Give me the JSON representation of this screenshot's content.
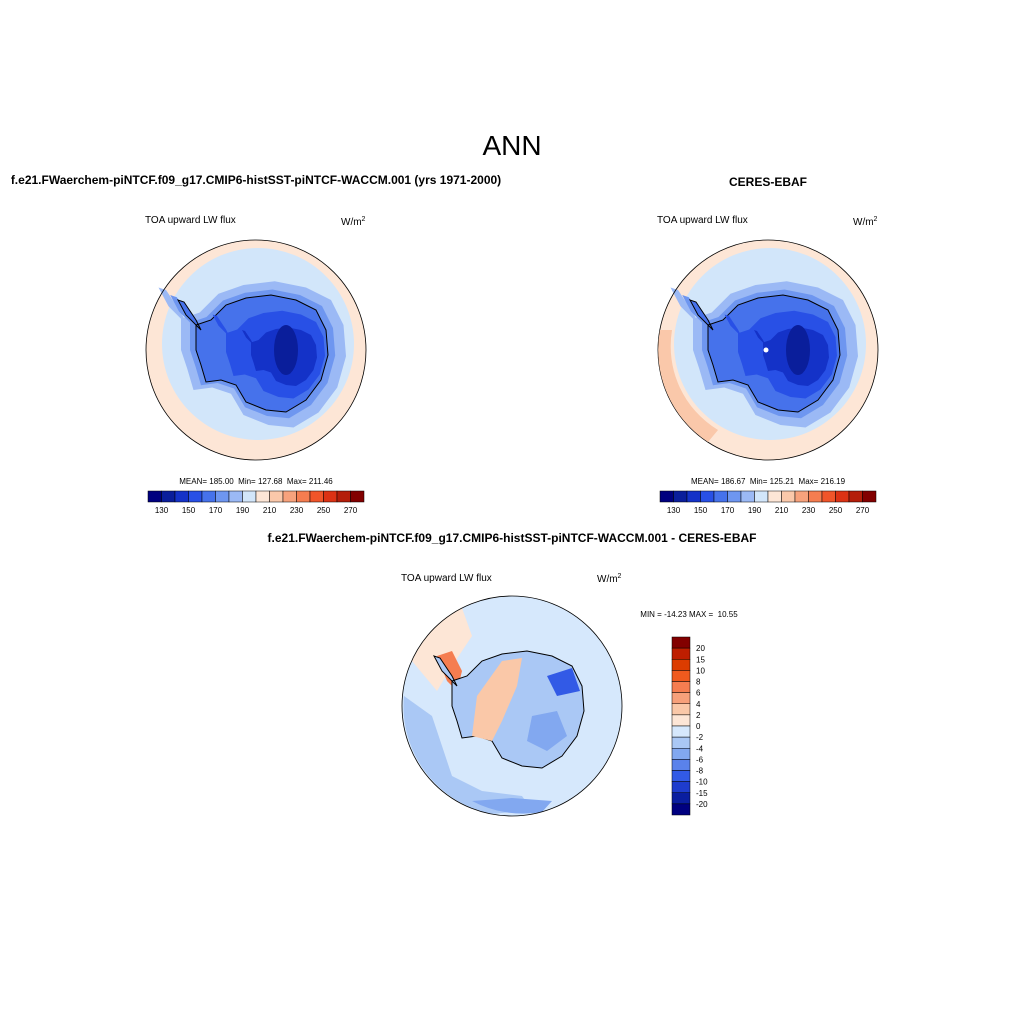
{
  "title": "ANN",
  "panels": [
    {
      "title": "f.e21.FWaerchem-piNTCF.f09_g17.CMIP6-histSST-piNTCF-WACCM.001 (yrs 1971-2000)",
      "variable": "TOA upward LW flux",
      "units": "W/m",
      "units_exp": "2",
      "stats": "MEAN= 185.00  Min= 127.68  Max= 211.46",
      "colorbar": {
        "labels": [
          130,
          150,
          170,
          190,
          210,
          230,
          250,
          270
        ]
      }
    },
    {
      "title": "CERES-EBAF",
      "variable": "TOA upward LW flux",
      "units": "W/m",
      "units_exp": "2",
      "stats": "MEAN= 186.67  Min= 125.21  Max= 216.19",
      "colorbar": {
        "labels": [
          130,
          150,
          170,
          190,
          210,
          230,
          250,
          270
        ]
      }
    }
  ],
  "abs_colors": [
    "#00007f",
    "#0a1e9b",
    "#1432c8",
    "#2850e6",
    "#4672eb",
    "#6e96f0",
    "#9bb9f5",
    "#d2e6fa",
    "#fde6d6",
    "#fac8aa",
    "#f7a27c",
    "#f57d50",
    "#f0552a",
    "#dc3214",
    "#b41e0a",
    "#820000"
  ],
  "diff": {
    "title": "f.e21.FWaerchem-piNTCF.f09_g17.CMIP6-histSST-piNTCF-WACCM.001 - CERES-EBAF",
    "variable": "TOA upward LW flux",
    "units": "W/m",
    "units_exp": "2",
    "stats": "MIN = -14.23 MAX =  10.55",
    "colorbar": {
      "labels": [
        20,
        15,
        10,
        8,
        6,
        4,
        2,
        0,
        -2,
        -4,
        -6,
        -8,
        -10,
        -15,
        -20
      ],
      "colors": [
        "#820000",
        "#be1e00",
        "#dc3c00",
        "#f05a1e",
        "#f57d50",
        "#f7a07a",
        "#fac8a8",
        "#fde6d6",
        "#d6e8fc",
        "#aac8f5",
        "#82a8f0",
        "#5a82eb",
        "#325ae6",
        "#1e3ccd",
        "#0a1ea0",
        "#000080"
      ]
    }
  }
}
